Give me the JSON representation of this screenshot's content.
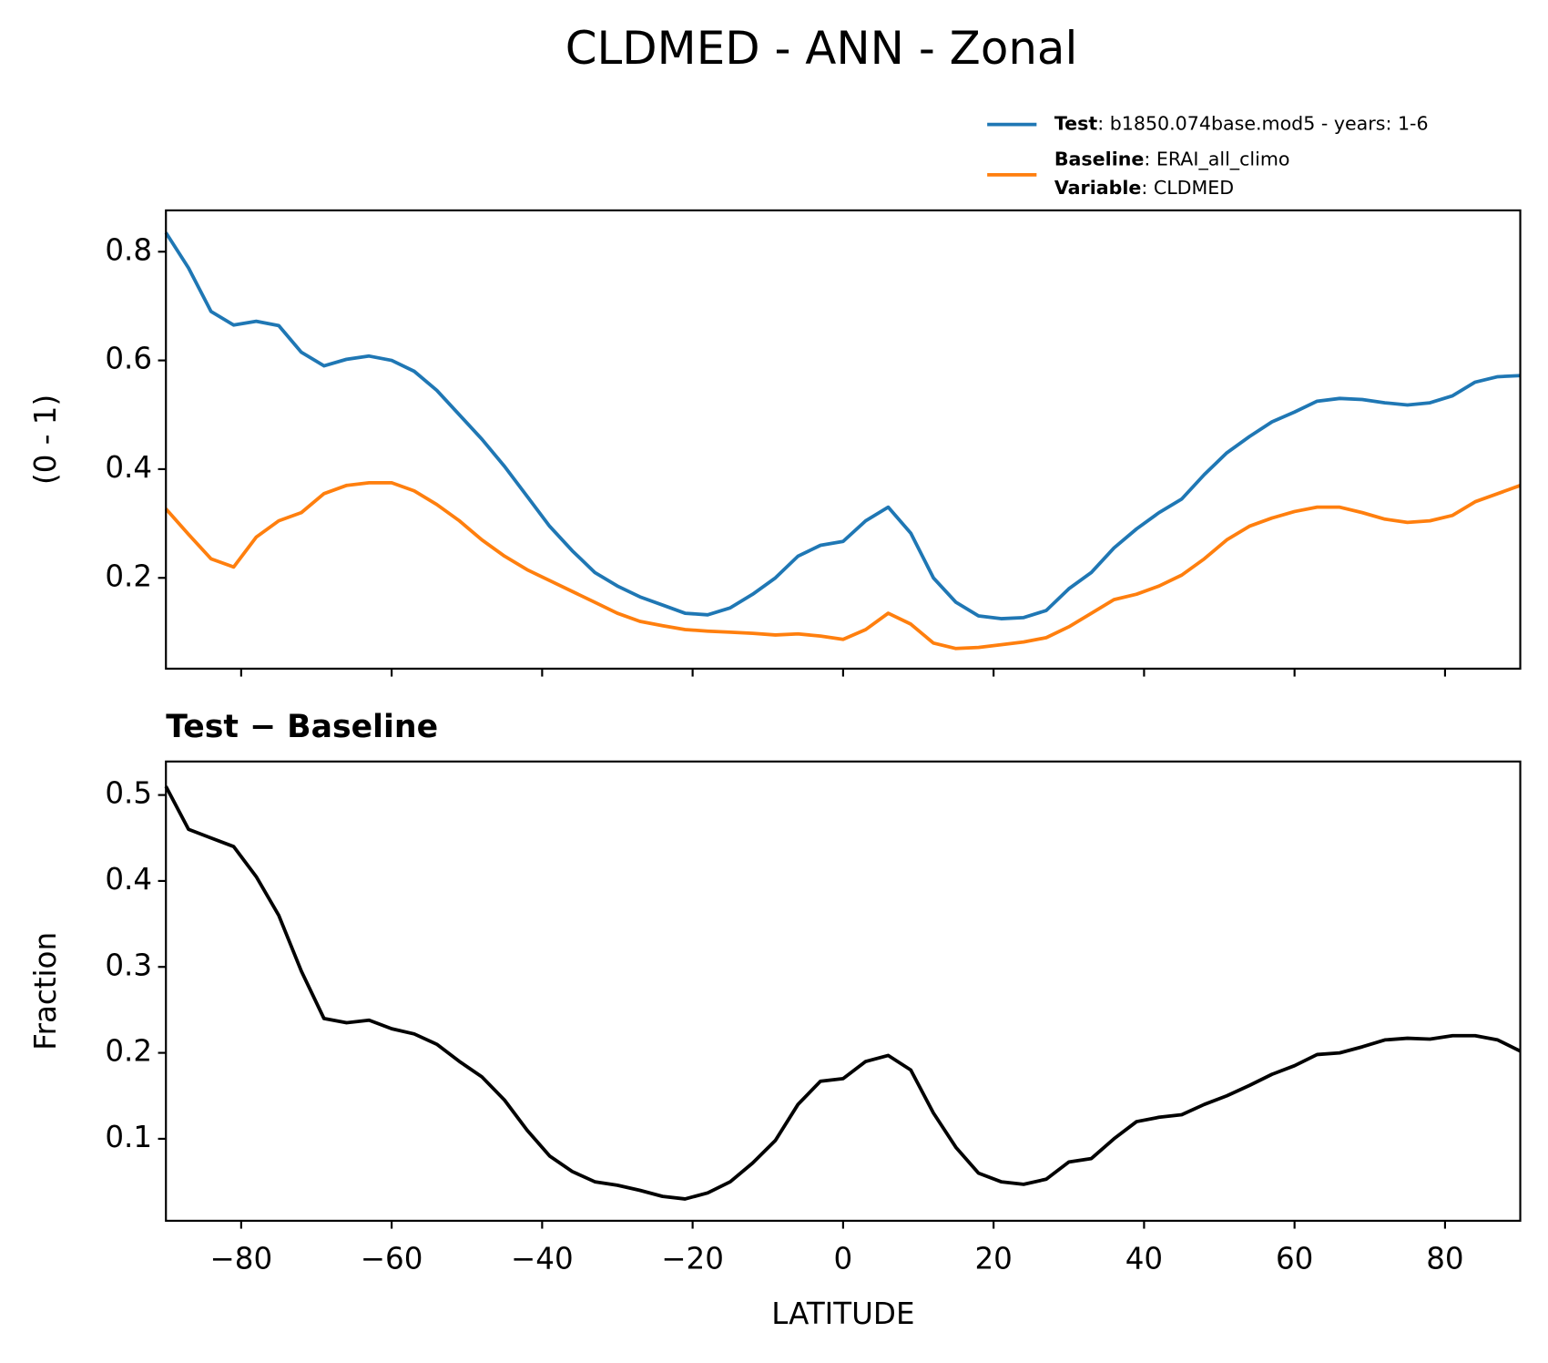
{
  "chart_data": [
    {
      "type": "line",
      "title": "CLDMED - ANN - Zonal",
      "ylabel": "(0 - 1)",
      "x": [
        -90,
        -87,
        -84,
        -81,
        -78,
        -75,
        -72,
        -69,
        -66,
        -63,
        -60,
        -57,
        -54,
        -51,
        -48,
        -45,
        -42,
        -39,
        -36,
        -33,
        -30,
        -27,
        -24,
        -21,
        -18,
        -15,
        -12,
        -9,
        -6,
        -3,
        0,
        3,
        6,
        9,
        12,
        15,
        18,
        21,
        24,
        27,
        30,
        33,
        36,
        39,
        42,
        45,
        48,
        51,
        54,
        57,
        60,
        63,
        66,
        69,
        72,
        75,
        78,
        81,
        84,
        87,
        90
      ],
      "series": [
        {
          "name": "Test",
          "description": ": b1850.074base.mod5 - years: 1-6",
          "color": "#1f77b4",
          "values": [
            0.835,
            0.77,
            0.69,
            0.665,
            0.672,
            0.664,
            0.615,
            0.59,
            0.602,
            0.608,
            0.6,
            0.58,
            0.545,
            0.5,
            0.455,
            0.405,
            0.35,
            0.295,
            0.25,
            0.21,
            0.185,
            0.165,
            0.15,
            0.135,
            0.132,
            0.145,
            0.17,
            0.2,
            0.24,
            0.26,
            0.267,
            0.305,
            0.33,
            0.282,
            0.2,
            0.155,
            0.13,
            0.125,
            0.127,
            0.14,
            0.18,
            0.21,
            0.255,
            0.29,
            0.32,
            0.345,
            0.39,
            0.43,
            0.46,
            0.487,
            0.505,
            0.525,
            0.53,
            0.528,
            0.522,
            0.518,
            0.522,
            0.535,
            0.56,
            0.57,
            0.572
          ]
        },
        {
          "name": "Baseline",
          "description": ": ERAI_all_climo",
          "color": "#ff7f0e",
          "values": [
            0.327,
            0.28,
            0.235,
            0.22,
            0.275,
            0.305,
            0.32,
            0.355,
            0.37,
            0.375,
            0.375,
            0.36,
            0.335,
            0.305,
            0.27,
            0.24,
            0.215,
            0.195,
            0.175,
            0.155,
            0.135,
            0.12,
            0.112,
            0.105,
            0.102,
            0.1,
            0.098,
            0.095,
            0.097,
            0.093,
            0.087,
            0.105,
            0.135,
            0.115,
            0.08,
            0.07,
            0.072,
            0.077,
            0.082,
            0.09,
            0.11,
            0.135,
            0.16,
            0.17,
            0.185,
            0.205,
            0.235,
            0.27,
            0.295,
            0.31,
            0.322,
            0.33,
            0.33,
            0.32,
            0.308,
            0.302,
            0.305,
            0.315,
            0.34,
            0.355,
            0.37
          ]
        }
      ],
      "legend_extra": {
        "name": "Variable",
        "description": ": CLDMED"
      },
      "legend": "upper right",
      "xlim": [
        -90,
        90
      ],
      "xticks": [
        -80,
        -60,
        -40,
        -20,
        0,
        20,
        40,
        60,
        80
      ],
      "xtick_labels": false,
      "ylim": [
        0.033,
        0.876
      ],
      "yticks": [
        0.2,
        0.4,
        0.6,
        0.8
      ]
    },
    {
      "type": "line",
      "title": "Test − Baseline",
      "ylabel": "Fraction",
      "xlabel": "LATITUDE",
      "x": [
        -90,
        -87,
        -84,
        -81,
        -78,
        -75,
        -72,
        -69,
        -66,
        -63,
        -60,
        -57,
        -54,
        -51,
        -48,
        -45,
        -42,
        -39,
        -36,
        -33,
        -30,
        -27,
        -24,
        -21,
        -18,
        -15,
        -12,
        -9,
        -6,
        -3,
        0,
        3,
        6,
        9,
        12,
        15,
        18,
        21,
        24,
        27,
        30,
        33,
        36,
        39,
        42,
        45,
        48,
        51,
        54,
        57,
        60,
        63,
        66,
        69,
        72,
        75,
        78,
        81,
        84,
        87,
        90
      ],
      "series": [
        {
          "color": "#000000",
          "values": [
            0.51,
            0.46,
            0.45,
            0.44,
            0.405,
            0.36,
            0.295,
            0.24,
            0.235,
            0.238,
            0.228,
            0.222,
            0.21,
            0.19,
            0.172,
            0.145,
            0.11,
            0.08,
            0.062,
            0.05,
            0.046,
            0.04,
            0.033,
            0.03,
            0.037,
            0.05,
            0.072,
            0.098,
            0.14,
            0.167,
            0.17,
            0.19,
            0.197,
            0.18,
            0.13,
            0.09,
            0.06,
            0.05,
            0.047,
            0.053,
            0.073,
            0.077,
            0.1,
            0.12,
            0.125,
            0.128,
            0.14,
            0.15,
            0.162,
            0.175,
            0.185,
            0.198,
            0.2,
            0.207,
            0.215,
            0.217,
            0.216,
            0.22,
            0.22,
            0.215,
            0.202
          ]
        }
      ],
      "xlim": [
        -90,
        90
      ],
      "xticks": [
        {
          "value": -80,
          "label": "−80"
        },
        {
          "value": -60,
          "label": "−60"
        },
        {
          "value": -40,
          "label": "−40"
        },
        {
          "value": -20,
          "label": "−20"
        },
        0,
        20,
        40,
        60,
        80
      ],
      "xtick_labels": true,
      "ylim": [
        0.0046,
        0.539
      ],
      "yticks": [
        0.1,
        0.2,
        0.3,
        0.4,
        0.5
      ]
    }
  ]
}
